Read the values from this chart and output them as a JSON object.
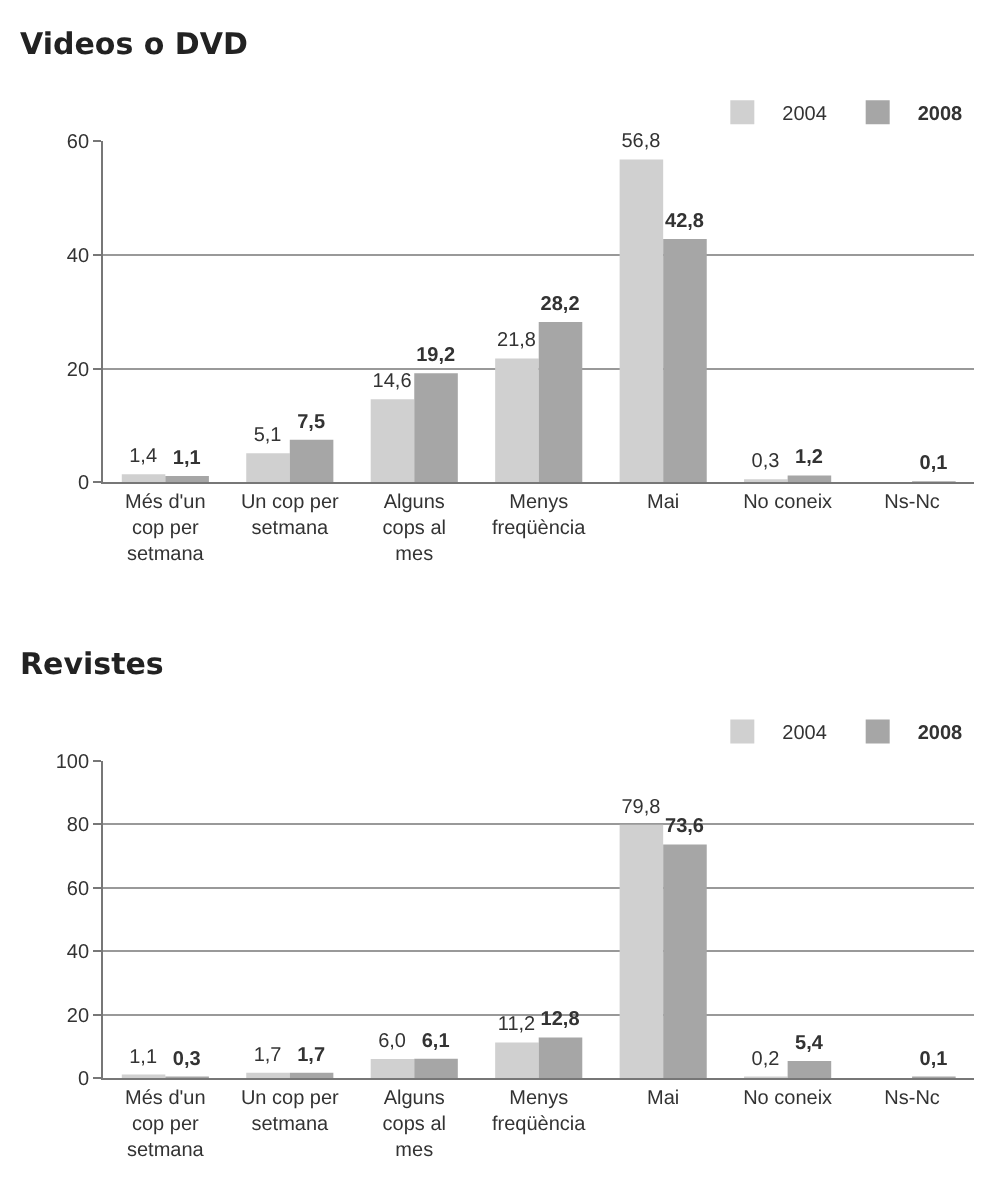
{
  "chart_data": [
    {
      "type": "bar",
      "title": "Videos o DVD",
      "categories": [
        "Més d'un cop per setmana",
        "Un cop per setmana",
        "Alguns cops al mes",
        "Menys freqüència",
        "Mai",
        "No coneix",
        "Ns-Nc"
      ],
      "series": [
        {
          "name": "2004",
          "color": "#d0d0d0",
          "values": [
            1.4,
            5.1,
            14.6,
            21.8,
            56.8,
            0.3,
            null
          ],
          "value_labels": [
            "1,4",
            "5,1",
            "14,6",
            "21,8",
            "56,8",
            "0,3",
            null
          ]
        },
        {
          "name": "2008",
          "color": "#a6a6a6",
          "values": [
            1.1,
            7.5,
            19.2,
            28.2,
            42.8,
            1.2,
            0.1
          ],
          "value_labels": [
            "1,1",
            "7,5",
            "19,2",
            "28,2",
            "42,8",
            "1,2",
            "0,1"
          ]
        }
      ],
      "ylim": [
        0,
        60
      ],
      "yticks": [
        0,
        20,
        40,
        60
      ],
      "grid": "y",
      "legend": "top right"
    },
    {
      "type": "bar",
      "title": "Revistes",
      "categories": [
        "Més d'un cop per setmana",
        "Un cop per setmana",
        "Alguns cops al mes",
        "Menys freqüència",
        "Mai",
        "No coneix",
        "Ns-Nc"
      ],
      "series": [
        {
          "name": "2004",
          "color": "#d0d0d0",
          "values": [
            1.1,
            1.7,
            6.0,
            11.2,
            79.8,
            0.2,
            null
          ],
          "value_labels": [
            "1,1",
            "1,7",
            "6,0",
            "11,2",
            "79,8",
            "0,2",
            null
          ]
        },
        {
          "name": "2008",
          "color": "#a6a6a6",
          "values": [
            0.3,
            1.7,
            6.1,
            12.8,
            73.6,
            5.4,
            0.1
          ],
          "value_labels": [
            "0,3",
            "1,7",
            "6,1",
            "12,8",
            "73,6",
            "5,4",
            "0,1"
          ]
        }
      ],
      "ylim": [
        0,
        100
      ],
      "yticks": [
        0,
        20,
        40,
        60,
        80,
        100
      ],
      "grid": "y",
      "legend": "top right"
    }
  ]
}
